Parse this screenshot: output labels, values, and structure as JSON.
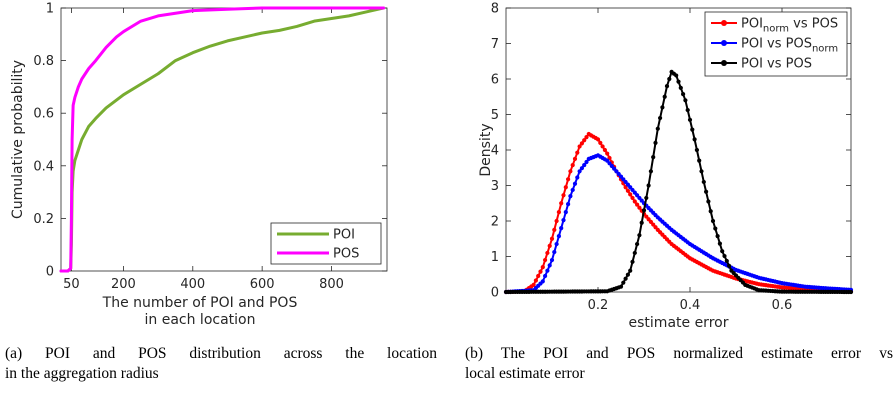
{
  "chart_data": [
    {
      "type": "line",
      "xlabel_lines": [
        "The number of POI and POS",
        "in each location"
      ],
      "ylabel": "Cumulative probability",
      "xlim": [
        20,
        960
      ],
      "ylim": [
        0,
        1
      ],
      "xticks": [
        50,
        200,
        400,
        600,
        800
      ],
      "yticks": [
        0,
        0.2,
        0.4,
        0.6,
        0.8,
        1
      ],
      "ytick_labels": [
        "0",
        "0.2",
        "0.4",
        "0.6",
        "0.8",
        "1"
      ],
      "grid": false,
      "legend": "bottom-right",
      "series": [
        {
          "name": "POI",
          "color": "#77ac30",
          "x": [
            20,
            40,
            48,
            50,
            52,
            55,
            60,
            70,
            80,
            100,
            120,
            150,
            180,
            200,
            250,
            300,
            350,
            400,
            450,
            500,
            550,
            600,
            650,
            700,
            750,
            800,
            850,
            900,
            950
          ],
          "y": [
            0,
            0,
            0.01,
            0.1,
            0.3,
            0.38,
            0.42,
            0.46,
            0.5,
            0.55,
            0.58,
            0.62,
            0.65,
            0.67,
            0.71,
            0.75,
            0.8,
            0.83,
            0.855,
            0.875,
            0.89,
            0.905,
            0.915,
            0.93,
            0.95,
            0.96,
            0.97,
            0.985,
            1.0
          ]
        },
        {
          "name": "POS",
          "color": "#ff00ff",
          "x": [
            20,
            40,
            48,
            50,
            52,
            55,
            60,
            70,
            80,
            100,
            120,
            150,
            180,
            200,
            250,
            300,
            350,
            400,
            500,
            600,
            700,
            800,
            950
          ],
          "y": [
            0,
            0,
            0.01,
            0.2,
            0.5,
            0.63,
            0.66,
            0.7,
            0.73,
            0.77,
            0.8,
            0.85,
            0.89,
            0.91,
            0.95,
            0.97,
            0.98,
            0.99,
            0.995,
            1.0,
            1.0,
            1.0,
            1.0
          ]
        }
      ]
    },
    {
      "type": "line",
      "xlabel": "estimate error",
      "ylabel": "Density",
      "xlim": [
        0,
        0.75
      ],
      "ylim": [
        0,
        8
      ],
      "xticks": [
        0.2,
        0.4,
        0.6
      ],
      "xtick_labels": [
        "0.2",
        "0.4",
        "0.6"
      ],
      "yticks": [
        0,
        1,
        2,
        3,
        4,
        5,
        6,
        7,
        8
      ],
      "ytick_labels": [
        "0",
        "1",
        "2",
        "3",
        "4",
        "5",
        "6",
        "7",
        "8"
      ],
      "grid": false,
      "legend": "top-right",
      "series": [
        {
          "name": "POI_norm vs POS",
          "legend_parts": [
            "POI",
            "norm",
            " vs POS"
          ],
          "color": "#ff0000",
          "x": [
            0,
            0.04,
            0.06,
            0.08,
            0.1,
            0.12,
            0.14,
            0.16,
            0.18,
            0.2,
            0.22,
            0.24,
            0.26,
            0.28,
            0.3,
            0.33,
            0.36,
            0.4,
            0.45,
            0.5,
            0.55,
            0.6,
            0.65,
            0.7,
            0.75
          ],
          "y": [
            0,
            0.02,
            0.2,
            0.7,
            1.5,
            2.5,
            3.4,
            4.1,
            4.45,
            4.3,
            3.9,
            3.4,
            2.95,
            2.55,
            2.2,
            1.75,
            1.35,
            0.95,
            0.6,
            0.38,
            0.22,
            0.13,
            0.07,
            0.04,
            0.02
          ]
        },
        {
          "name": "POI vs POS_norm",
          "legend_parts": [
            "POI vs POS",
            "norm",
            ""
          ],
          "color": "#0000ff",
          "x": [
            0,
            0.06,
            0.08,
            0.1,
            0.12,
            0.14,
            0.16,
            0.18,
            0.2,
            0.22,
            0.24,
            0.26,
            0.28,
            0.3,
            0.33,
            0.36,
            0.4,
            0.45,
            0.5,
            0.55,
            0.6,
            0.65,
            0.7,
            0.75
          ],
          "y": [
            0,
            0.05,
            0.3,
            0.9,
            1.8,
            2.7,
            3.4,
            3.75,
            3.85,
            3.7,
            3.4,
            3.1,
            2.8,
            2.5,
            2.1,
            1.75,
            1.35,
            0.95,
            0.62,
            0.4,
            0.25,
            0.15,
            0.1,
            0.06
          ]
        },
        {
          "name": "POI vs POS",
          "legend_parts": [
            "POI vs POS",
            "",
            ""
          ],
          "color": "#000000",
          "x": [
            0,
            0.22,
            0.25,
            0.27,
            0.29,
            0.31,
            0.33,
            0.35,
            0.36,
            0.37,
            0.39,
            0.41,
            0.43,
            0.45,
            0.47,
            0.49,
            0.52,
            0.55,
            0.6,
            0.75
          ],
          "y": [
            0,
            0.02,
            0.15,
            0.6,
            1.6,
            3.0,
            4.6,
            5.8,
            6.2,
            6.1,
            5.4,
            4.3,
            3.1,
            2.0,
            1.15,
            0.6,
            0.2,
            0.05,
            0.01,
            0
          ]
        }
      ]
    }
  ],
  "captions": {
    "a_line1": "(a)  POI and POS distribution across the location",
    "a_line2": "in the aggregation radius",
    "b_line1": "(b)  The POI and POS normalized estimate error vs",
    "b_line2": "local estimate error"
  }
}
